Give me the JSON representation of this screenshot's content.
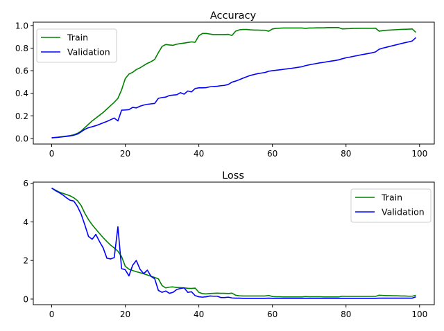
{
  "chart_data": [
    {
      "type": "line",
      "title": "Accuracy",
      "xlabel": "",
      "ylabel": "",
      "xlim": [
        -5,
        104
      ],
      "ylim": [
        -0.05,
        1.03
      ],
      "xticks": [
        0,
        20,
        40,
        60,
        80,
        100
      ],
      "yticks": [
        0.0,
        0.2,
        0.4,
        0.6,
        0.8,
        1.0
      ],
      "xtick_labels": [
        "0",
        "20",
        "40",
        "60",
        "80",
        "100"
      ],
      "ytick_labels": [
        "0.0",
        "0.2",
        "0.4",
        "0.6",
        "0.8",
        "1.0"
      ],
      "legend_position": "upper-left",
      "grid": false,
      "x_start": 0,
      "series": [
        {
          "name": "Train",
          "color": "#008000",
          "values": [
            0.005,
            0.008,
            0.012,
            0.016,
            0.02,
            0.025,
            0.032,
            0.045,
            0.065,
            0.095,
            0.125,
            0.155,
            0.18,
            0.205,
            0.23,
            0.26,
            0.29,
            0.32,
            0.355,
            0.43,
            0.53,
            0.57,
            0.585,
            0.61,
            0.625,
            0.645,
            0.665,
            0.68,
            0.7,
            0.76,
            0.815,
            0.832,
            0.828,
            0.825,
            0.835,
            0.84,
            0.845,
            0.85,
            0.855,
            0.852,
            0.91,
            0.93,
            0.93,
            0.925,
            0.92,
            0.92,
            0.92,
            0.92,
            0.922,
            0.912,
            0.95,
            0.962,
            0.965,
            0.965,
            0.962,
            0.96,
            0.96,
            0.958,
            0.958,
            0.95,
            0.97,
            0.975,
            0.977,
            0.978,
            0.978,
            0.978,
            0.978,
            0.978,
            0.978,
            0.975,
            0.978,
            0.978,
            0.98,
            0.98,
            0.98,
            0.982,
            0.982,
            0.982,
            0.982,
            0.97,
            0.972,
            0.973,
            0.975,
            0.975,
            0.976,
            0.976,
            0.976,
            0.976,
            0.977,
            0.95,
            0.955,
            0.958,
            0.96,
            0.962,
            0.964,
            0.966,
            0.967,
            0.968,
            0.97,
            0.94
          ]
        },
        {
          "name": "Validation",
          "color": "#0000ff",
          "values": [
            0.005,
            0.008,
            0.01,
            0.014,
            0.018,
            0.022,
            0.028,
            0.038,
            0.058,
            0.08,
            0.095,
            0.103,
            0.113,
            0.125,
            0.138,
            0.15,
            0.165,
            0.18,
            0.155,
            0.25,
            0.252,
            0.255,
            0.275,
            0.27,
            0.285,
            0.295,
            0.302,
            0.306,
            0.31,
            0.355,
            0.362,
            0.366,
            0.38,
            0.384,
            0.387,
            0.405,
            0.392,
            0.42,
            0.412,
            0.442,
            0.448,
            0.448,
            0.45,
            0.457,
            0.46,
            0.462,
            0.467,
            0.47,
            0.478,
            0.498,
            0.508,
            0.52,
            0.534,
            0.546,
            0.558,
            0.566,
            0.574,
            0.579,
            0.584,
            0.595,
            0.6,
            0.604,
            0.608,
            0.612,
            0.616,
            0.62,
            0.625,
            0.63,
            0.635,
            0.645,
            0.652,
            0.658,
            0.664,
            0.67,
            0.674,
            0.68,
            0.685,
            0.69,
            0.696,
            0.706,
            0.714,
            0.72,
            0.727,
            0.733,
            0.74,
            0.746,
            0.752,
            0.758,
            0.766,
            0.79,
            0.8,
            0.808,
            0.816,
            0.824,
            0.832,
            0.84,
            0.848,
            0.855,
            0.863,
            0.893
          ]
        }
      ]
    },
    {
      "type": "line",
      "title": "Loss",
      "xlabel": "",
      "ylabel": "",
      "xlim": [
        -5,
        104
      ],
      "ylim": [
        -0.29,
        6.06
      ],
      "xticks": [
        0,
        20,
        40,
        60,
        80,
        100
      ],
      "yticks": [
        0,
        2,
        4,
        6
      ],
      "xtick_labels": [
        "0",
        "20",
        "40",
        "60",
        "80",
        "100"
      ],
      "ytick_labels": [
        "0",
        "2",
        "4",
        "6"
      ],
      "legend_position": "upper-right",
      "grid": false,
      "x_start": 0,
      "series": [
        {
          "name": "Train",
          "color": "#008000",
          "values": [
            5.75,
            5.65,
            5.55,
            5.48,
            5.42,
            5.35,
            5.25,
            5.1,
            4.85,
            4.45,
            4.12,
            3.85,
            3.62,
            3.4,
            3.18,
            2.98,
            2.8,
            2.65,
            2.48,
            2.2,
            1.7,
            1.55,
            1.48,
            1.42,
            1.37,
            1.31,
            1.25,
            1.18,
            1.12,
            1.05,
            0.7,
            0.58,
            0.62,
            0.63,
            0.6,
            0.59,
            0.58,
            0.56,
            0.55,
            0.57,
            0.35,
            0.28,
            0.27,
            0.29,
            0.3,
            0.31,
            0.3,
            0.3,
            0.29,
            0.31,
            0.2,
            0.17,
            0.16,
            0.16,
            0.16,
            0.16,
            0.16,
            0.16,
            0.16,
            0.19,
            0.13,
            0.12,
            0.12,
            0.11,
            0.11,
            0.11,
            0.11,
            0.11,
            0.11,
            0.13,
            0.12,
            0.12,
            0.12,
            0.12,
            0.11,
            0.11,
            0.11,
            0.11,
            0.11,
            0.15,
            0.14,
            0.14,
            0.14,
            0.14,
            0.14,
            0.14,
            0.14,
            0.14,
            0.14,
            0.2,
            0.19,
            0.18,
            0.18,
            0.17,
            0.17,
            0.16,
            0.16,
            0.15,
            0.15,
            0.2
          ]
        },
        {
          "name": "Validation",
          "color": "#0000ff",
          "values": [
            5.75,
            5.62,
            5.52,
            5.4,
            5.25,
            5.12,
            5.08,
            4.8,
            4.4,
            3.85,
            3.25,
            3.1,
            3.35,
            2.98,
            2.65,
            2.12,
            2.08,
            2.15,
            3.75,
            1.58,
            1.52,
            1.2,
            1.75,
            2.0,
            1.55,
            1.32,
            1.5,
            1.18,
            1.05,
            0.45,
            0.35,
            0.42,
            0.3,
            0.35,
            0.5,
            0.55,
            0.58,
            0.35,
            0.38,
            0.18,
            0.12,
            0.1,
            0.12,
            0.16,
            0.15,
            0.15,
            0.08,
            0.08,
            0.1,
            0.06,
            0.05,
            0.05,
            0.04,
            0.04,
            0.04,
            0.04,
            0.04,
            0.04,
            0.04,
            0.05,
            0.04,
            0.04,
            0.04,
            0.04,
            0.04,
            0.04,
            0.04,
            0.04,
            0.04,
            0.04,
            0.04,
            0.04,
            0.04,
            0.04,
            0.04,
            0.04,
            0.04,
            0.04,
            0.04,
            0.04,
            0.04,
            0.04,
            0.04,
            0.04,
            0.04,
            0.04,
            0.04,
            0.04,
            0.04,
            0.05,
            0.05,
            0.05,
            0.05,
            0.05,
            0.05,
            0.05,
            0.05,
            0.05,
            0.05,
            0.12
          ]
        }
      ]
    }
  ]
}
